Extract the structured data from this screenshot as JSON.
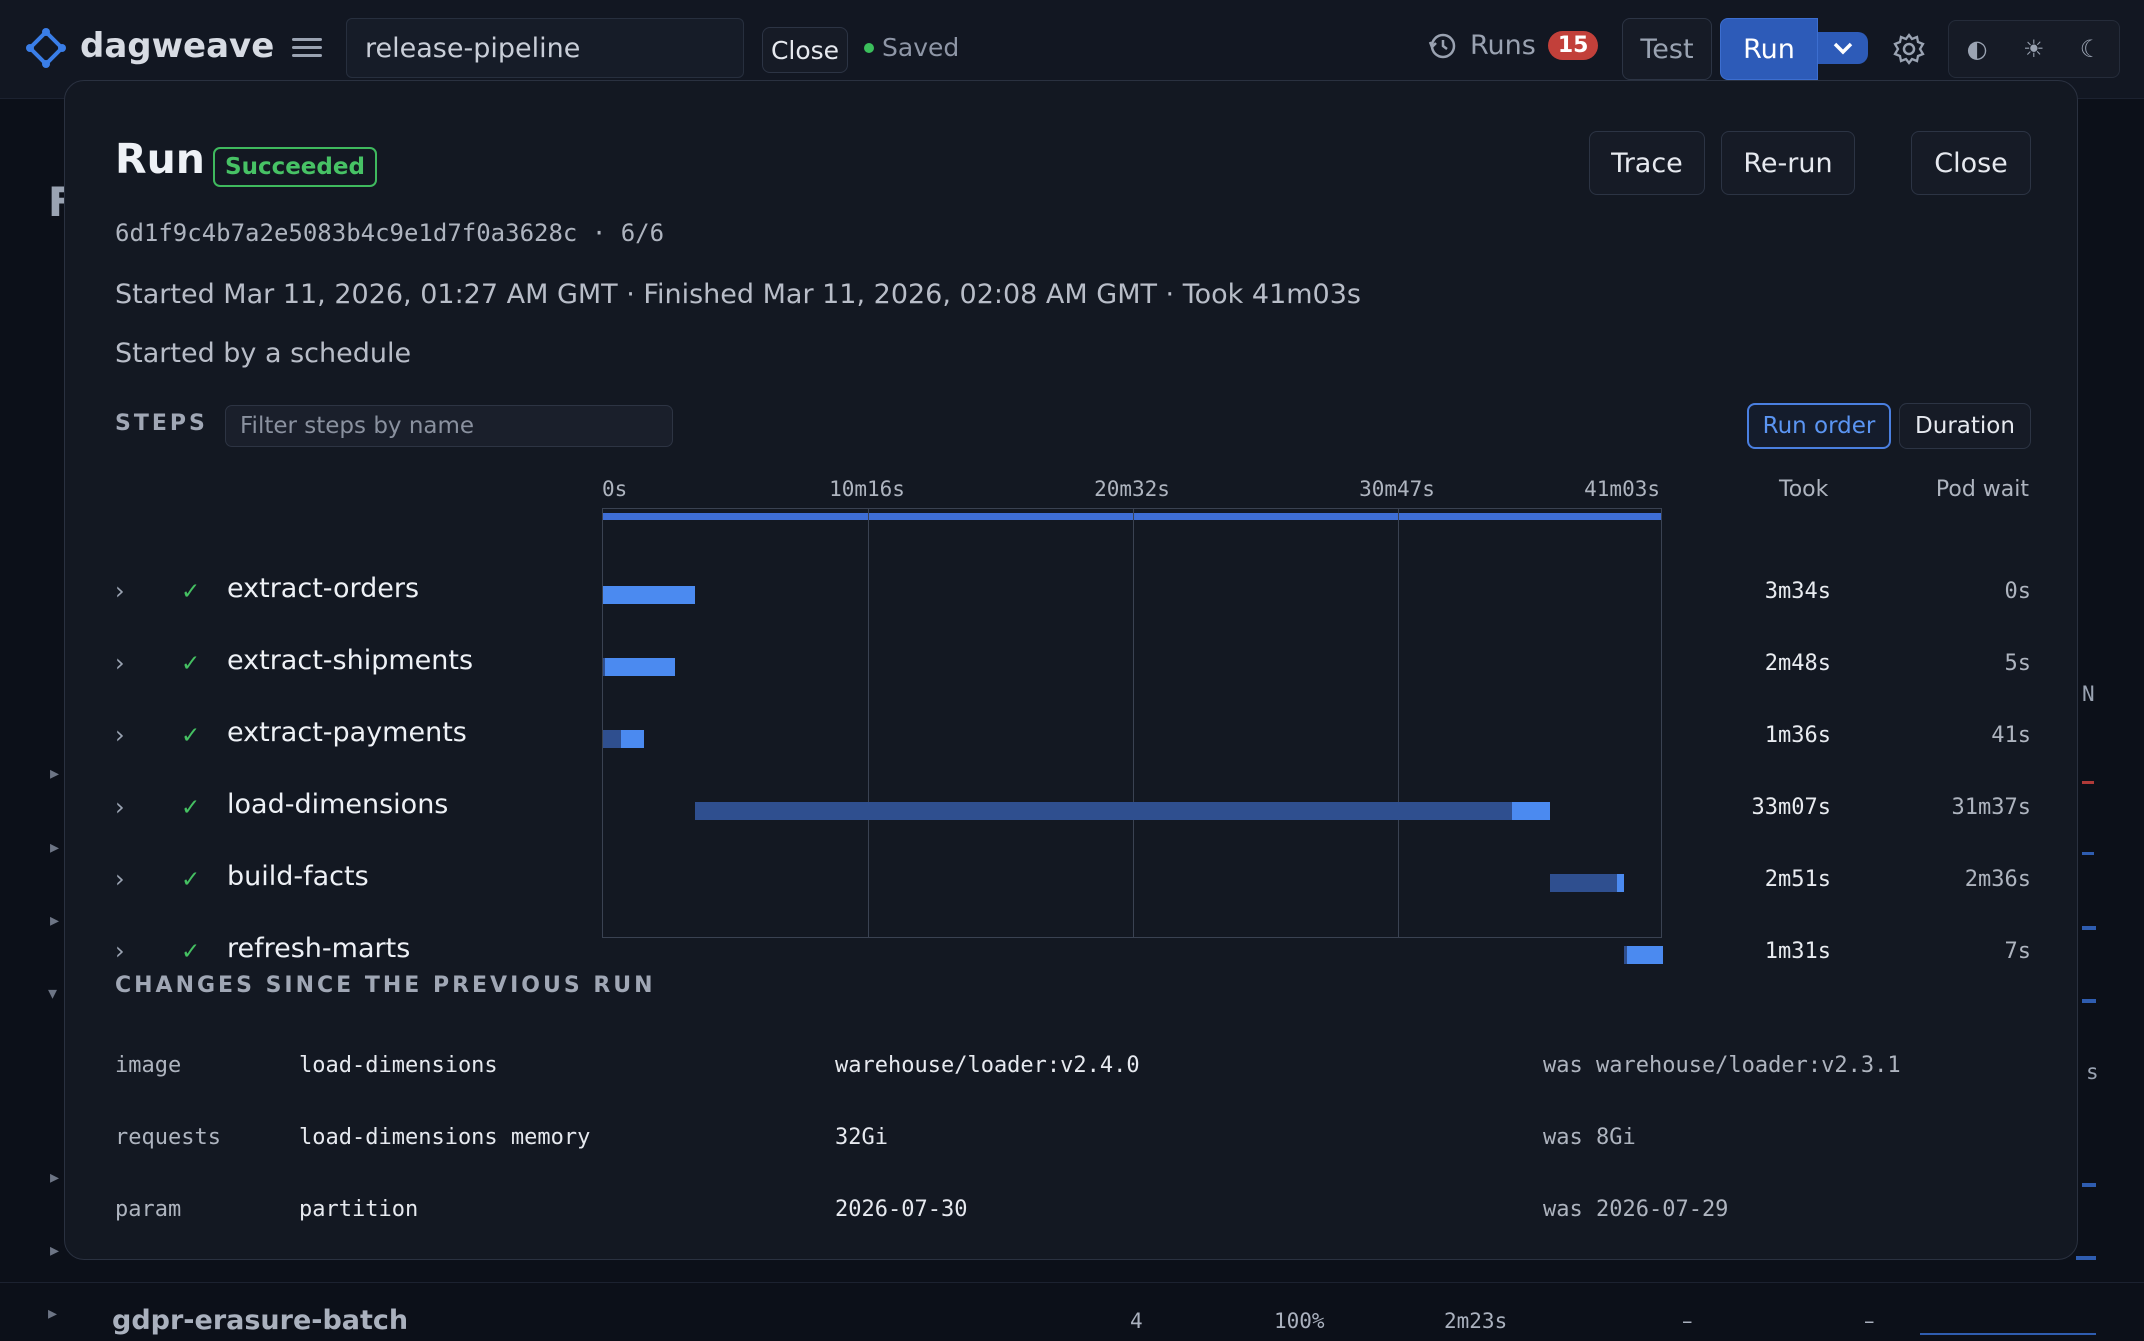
{
  "app": {
    "name": "dagweave",
    "pipeline_name": "release-pipeline",
    "close_label": "Close",
    "saved_label": "Saved"
  },
  "topbar": {
    "runs_label": "Runs",
    "runs_count": "15",
    "test_label": "Test",
    "run_label": "Run"
  },
  "modal": {
    "title": "Run",
    "status": "Succeeded",
    "hash_line": "6d1f9c4b7a2e5083b4c9e1d7f0a3628c · 6/6",
    "timing": "Started Mar 11, 2026, 01:27 AM GMT · Finished Mar 11, 2026, 02:08 AM GMT · Took 41m03s",
    "started_by": "Started by a schedule",
    "trace_label": "Trace",
    "rerun_label": "Re-run",
    "close_label": "Close",
    "steps_heading": "STEPS",
    "filter_placeholder": "Filter steps by name",
    "sort_run_order": "Run order",
    "sort_duration": "Duration",
    "axis_labels": [
      "0s",
      "10m16s",
      "20m32s",
      "30m47s",
      "41m03s"
    ],
    "col_took": "Took",
    "col_pod_wait": "Pod wait",
    "total_seconds": 2463,
    "steps": [
      {
        "name": "extract-orders",
        "status_icon": "✓",
        "took": "3m34s",
        "pod_wait": "0s",
        "start_s": 0,
        "wait_s": 0,
        "run_s": 214
      },
      {
        "name": "extract-shipments",
        "status_icon": "✓",
        "took": "2m48s",
        "pod_wait": "5s",
        "start_s": 0,
        "wait_s": 5,
        "run_s": 163
      },
      {
        "name": "extract-payments",
        "status_icon": "✓",
        "took": "1m36s",
        "pod_wait": "41s",
        "start_s": 0,
        "wait_s": 41,
        "run_s": 55
      },
      {
        "name": "load-dimensions",
        "status_icon": "✓",
        "took": "33m07s",
        "pod_wait": "31m37s",
        "start_s": 214,
        "wait_s": 1897,
        "run_s": 90
      },
      {
        "name": "build-facts",
        "status_icon": "✓",
        "took": "2m51s",
        "pod_wait": "2m36s",
        "start_s": 2201,
        "wait_s": 156,
        "run_s": 15
      },
      {
        "name": "refresh-marts",
        "status_icon": "✓",
        "took": "1m31s",
        "pod_wait": "7s",
        "start_s": 2372,
        "wait_s": 7,
        "run_s": 84
      }
    ],
    "changes_heading": "CHANGES SINCE THE PREVIOUS RUN",
    "changes": [
      {
        "kind": "image",
        "target": "load-dimensions",
        "value": "warehouse/loader:v2.4.0",
        "previous": "was warehouse/loader:v2.3.1"
      },
      {
        "kind": "requests",
        "target": "load-dimensions memory",
        "value": "32Gi",
        "previous": "was 8Gi"
      },
      {
        "kind": "param",
        "target": "partition",
        "value": "2026-07-30",
        "previous": "was 2026-07-29"
      }
    ]
  },
  "background": {
    "bottom_row": {
      "name": "gdpr-erasure-batch",
      "runs": "4",
      "success": "100%",
      "duration": "2m23s",
      "c1": "–",
      "c2": "–"
    },
    "fragments": {
      "heading_letter": "F",
      "col_letter": "N",
      "tail": "s"
    }
  },
  "colors": {
    "accent": "#4b8af0",
    "wait": "#2f4f8f",
    "success": "#45c062",
    "badge": "#c2403a"
  },
  "icons": {
    "logo": "logo-diamond-icon",
    "menu": "hamburger-menu-icon",
    "history": "history-icon",
    "settings": "gear-icon",
    "contrast": "contrast-icon",
    "light": "sun-icon",
    "dark": "moon-icon"
  }
}
